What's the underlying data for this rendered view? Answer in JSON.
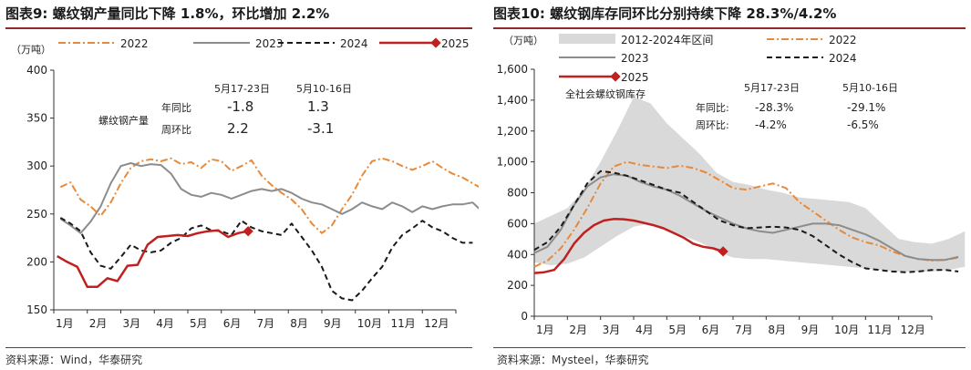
{
  "left": {
    "title": "图表9:  螺纹钢产量同比下降 1.8%，环比增加 2.2%",
    "source": "资料来源：Wind，华泰研究",
    "unit": "（万吨）",
    "series_label": "螺纹钢产量",
    "table": {
      "headers": [
        "5月17-23日",
        "5月10-16日"
      ],
      "rows": [
        {
          "label": "年同比",
          "values": [
            "-1.8",
            "1.3"
          ]
        },
        {
          "label": "周环比",
          "values": [
            "2.2",
            "-3.1"
          ]
        }
      ]
    }
  },
  "right": {
    "title": "图表10:  螺纹钢库存同环比分别持续下降 28.3%/4.2%",
    "source": "资料来源：Mysteel，华泰研究",
    "unit": "（万吨）",
    "series_label": "全社会螺纹钢库存",
    "table": {
      "headers": [
        "5月17-23日",
        "5月10-16日"
      ],
      "rows": [
        {
          "label": "年同比:",
          "values": [
            "-28.3%",
            "-29.1%"
          ]
        },
        {
          "label": "周环比:",
          "values": [
            "-4.2%",
            "-6.5%"
          ]
        }
      ]
    }
  },
  "colors": {
    "s2022": "#e8893a",
    "s2023": "#8c8c8c",
    "s2024": "#1a1a1a",
    "s2025": "#c0201f",
    "band": "#d9d9d9",
    "rule": "#8f2a2a"
  },
  "chart_data": [
    {
      "type": "line",
      "xlabel": "",
      "ylabel": "",
      "ylim": [
        150,
        400
      ],
      "yticks": [
        150,
        200,
        250,
        300,
        350,
        400
      ],
      "month_ticks": [
        "1月",
        "2月",
        "3月",
        "4月",
        "5月",
        "6月",
        "7月",
        "8月",
        "9月",
        "10月",
        "11月",
        "12月"
      ],
      "legend_position": "top",
      "series": [
        {
          "name": "2022",
          "style": "dashdot",
          "x": [
            0.2,
            0.5,
            0.8,
            1.1,
            1.4,
            1.7,
            2.0,
            2.3,
            2.6,
            2.9,
            3.2,
            3.5,
            3.8,
            4.1,
            4.4,
            4.7,
            5.0,
            5.3,
            5.6,
            5.9,
            6.2,
            6.5,
            6.8,
            7.1,
            7.4,
            7.7,
            8.0,
            8.3,
            8.6,
            8.9,
            9.2,
            9.5,
            9.8,
            10.1,
            10.4,
            10.7,
            11.0,
            11.3,
            11.6,
            11.9,
            12.2,
            12.5,
            12.8
          ],
          "values": [
            278,
            283,
            265,
            258,
            248,
            262,
            282,
            298,
            305,
            307,
            305,
            308,
            302,
            304,
            298,
            307,
            305,
            295,
            300,
            306,
            290,
            280,
            272,
            265,
            255,
            240,
            230,
            238,
            255,
            270,
            290,
            305,
            308,
            305,
            300,
            296,
            300,
            305,
            298,
            292,
            288,
            282,
            276
          ]
        },
        {
          "name": "2023",
          "x": [
            0.2,
            0.5,
            0.8,
            1.1,
            1.4,
            1.7,
            2.0,
            2.3,
            2.6,
            2.9,
            3.2,
            3.5,
            3.8,
            4.1,
            4.4,
            4.7,
            5.0,
            5.3,
            5.6,
            5.9,
            6.2,
            6.5,
            6.8,
            7.1,
            7.4,
            7.7,
            8.0,
            8.3,
            8.6,
            8.9,
            9.2,
            9.5,
            9.8,
            10.1,
            10.4,
            10.7,
            11.0,
            11.3,
            11.6,
            11.9,
            12.2,
            12.5,
            12.8
          ],
          "values": [
            245,
            238,
            230,
            242,
            258,
            282,
            300,
            303,
            300,
            302,
            301,
            292,
            276,
            270,
            268,
            272,
            270,
            266,
            270,
            274,
            276,
            274,
            276,
            272,
            266,
            262,
            260,
            255,
            250,
            255,
            262,
            258,
            255,
            262,
            258,
            252,
            258,
            255,
            258,
            260,
            260,
            262,
            252
          ]
        },
        {
          "name": "2024",
          "style": "dashed",
          "x": [
            0.2,
            0.5,
            0.8,
            1.1,
            1.4,
            1.7,
            2.0,
            2.3,
            2.6,
            2.9,
            3.2,
            3.5,
            3.8,
            4.1,
            4.4,
            4.7,
            5.0,
            5.3,
            5.6,
            5.9,
            6.2,
            6.5,
            6.8,
            7.1,
            7.4,
            7.7,
            8.0,
            8.3,
            8.6,
            8.9,
            9.2,
            9.5,
            9.8,
            10.1,
            10.4,
            10.7,
            11.0,
            11.3,
            11.6,
            11.9,
            12.2,
            12.5
          ],
          "values": [
            246,
            240,
            232,
            210,
            196,
            193,
            205,
            218,
            212,
            210,
            212,
            220,
            225,
            235,
            238,
            233,
            232,
            228,
            243,
            236,
            232,
            230,
            228,
            240,
            226,
            212,
            195,
            170,
            162,
            160,
            170,
            183,
            195,
            215,
            228,
            235,
            243,
            236,
            232,
            225,
            220,
            220
          ]
        },
        {
          "name": "2025",
          "x": [
            0.1,
            0.4,
            0.7,
            1.0,
            1.3,
            1.6,
            1.9,
            2.2,
            2.5,
            2.8,
            3.1,
            3.4,
            3.7,
            4.0,
            4.3,
            4.6,
            4.9,
            5.2,
            5.5,
            5.8
          ],
          "values": [
            206,
            200,
            195,
            174,
            174,
            183,
            180,
            196,
            197,
            218,
            226,
            227,
            228,
            227,
            230,
            232,
            233,
            226,
            230,
            232
          ]
        }
      ]
    },
    {
      "type": "line",
      "xlabel": "",
      "ylabel": "",
      "ylim": [
        0,
        1600
      ],
      "yticks": [
        0,
        200,
        400,
        600,
        800,
        1000,
        1200,
        1400,
        1600
      ],
      "month_ticks": [
        "1月",
        "2月",
        "3月",
        "4月",
        "5月",
        "6月",
        "7月",
        "8月",
        "9月",
        "10月",
        "11月",
        "12月"
      ],
      "legend_position": "top",
      "series": [
        {
          "name": "2012-2024年区间",
          "type": "area",
          "x": [
            0.0,
            0.5,
            1.0,
            1.5,
            2.0,
            2.5,
            3.0,
            3.5,
            4.0,
            4.5,
            5.0,
            5.5,
            6.0,
            6.5,
            7.0,
            7.5,
            8.0,
            8.5,
            9.0,
            9.5,
            10.0,
            10.5,
            11.0,
            11.5,
            12.0,
            12.5,
            13.0
          ],
          "upper": [
            600,
            650,
            700,
            820,
            1000,
            1200,
            1420,
            1380,
            1250,
            1150,
            1050,
            930,
            870,
            850,
            820,
            800,
            770,
            760,
            750,
            740,
            700,
            600,
            500,
            480,
            470,
            500,
            550
          ],
          "lower": [
            350,
            330,
            340,
            380,
            450,
            520,
            580,
            600,
            560,
            520,
            480,
            420,
            380,
            370,
            370,
            360,
            350,
            340,
            330,
            320,
            310,
            300,
            290,
            290,
            290,
            300,
            320
          ]
        },
        {
          "name": "2022",
          "style": "dashdot",
          "x": [
            0.0,
            0.4,
            0.8,
            1.2,
            1.6,
            2.0,
            2.4,
            2.8,
            3.2,
            3.6,
            4.0,
            4.4,
            4.8,
            5.2,
            5.6,
            6.0,
            6.4,
            6.8,
            7.2,
            7.6,
            8.0,
            8.4,
            8.8,
            9.2,
            9.6,
            10.0,
            10.4,
            10.8,
            11.2,
            11.6,
            12.0,
            12.4,
            12.8
          ],
          "values": [
            320,
            360,
            440,
            560,
            700,
            860,
            970,
            1000,
            980,
            970,
            960,
            975,
            960,
            930,
            880,
            830,
            820,
            840,
            860,
            830,
            740,
            680,
            620,
            560,
            510,
            480,
            460,
            420,
            390,
            370,
            360,
            365,
            380
          ]
        },
        {
          "name": "2023",
          "x": [
            0.0,
            0.4,
            0.8,
            1.2,
            1.6,
            2.0,
            2.4,
            2.8,
            3.2,
            3.6,
            4.0,
            4.4,
            4.8,
            5.2,
            5.6,
            6.0,
            6.4,
            6.8,
            7.2,
            7.6,
            8.0,
            8.4,
            8.8,
            9.2,
            9.6,
            10.0,
            10.4,
            10.8,
            11.2,
            11.6,
            12.0,
            12.4,
            12.8
          ],
          "values": [
            410,
            450,
            560,
            720,
            840,
            900,
            920,
            910,
            870,
            840,
            820,
            780,
            730,
            680,
            640,
            600,
            570,
            550,
            540,
            560,
            580,
            600,
            600,
            590,
            560,
            530,
            490,
            440,
            390,
            370,
            365,
            365,
            385
          ]
        },
        {
          "name": "2024",
          "style": "dashed",
          "x": [
            0.0,
            0.4,
            0.8,
            1.2,
            1.6,
            2.0,
            2.4,
            2.8,
            3.2,
            3.6,
            4.0,
            4.4,
            4.8,
            5.2,
            5.6,
            6.0,
            6.4,
            6.8,
            7.2,
            7.6,
            8.0,
            8.4,
            8.8,
            9.2,
            9.6,
            10.0,
            10.4,
            10.8,
            11.2,
            11.6,
            12.0,
            12.4,
            12.8
          ],
          "values": [
            430,
            480,
            580,
            720,
            860,
            940,
            930,
            910,
            880,
            850,
            820,
            800,
            740,
            680,
            620,
            590,
            570,
            575,
            580,
            575,
            560,
            520,
            460,
            400,
            350,
            310,
            300,
            290,
            285,
            290,
            300,
            300,
            290
          ]
        },
        {
          "name": "2025",
          "x": [
            0.0,
            0.3,
            0.6,
            0.9,
            1.2,
            1.5,
            1.8,
            2.1,
            2.4,
            2.7,
            3.0,
            3.3,
            3.6,
            3.9,
            4.2,
            4.5,
            4.8,
            5.1,
            5.4,
            5.7
          ],
          "values": [
            280,
            285,
            300,
            370,
            470,
            540,
            590,
            620,
            630,
            628,
            620,
            605,
            590,
            570,
            540,
            510,
            470,
            450,
            440,
            420
          ]
        }
      ]
    }
  ]
}
